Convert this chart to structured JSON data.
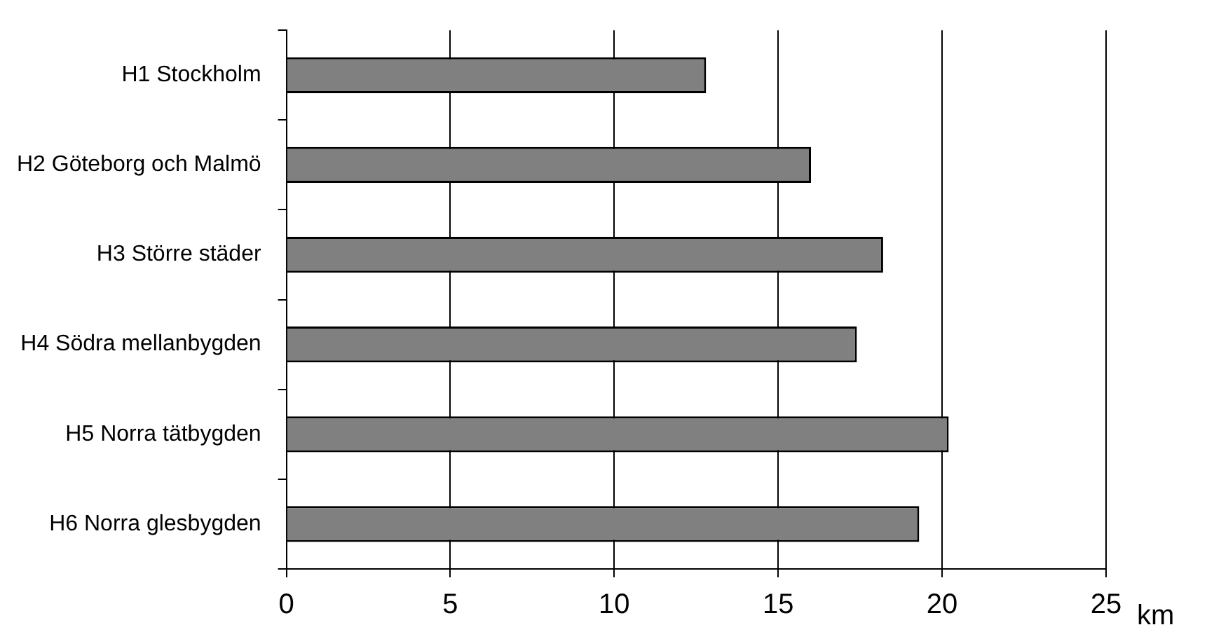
{
  "chart_data": {
    "type": "bar",
    "orientation": "horizontal",
    "xlabel": "km",
    "categories": [
      "H1 Stockholm",
      "H2 Göteborg och Malmö",
      "H3 Större städer",
      "H4 Södra mellanbygden",
      "H5 Norra tätbygden",
      "H6 Norra glesbygden"
    ],
    "values": [
      12.8,
      16.0,
      18.2,
      17.4,
      20.2,
      19.3
    ],
    "color": "#808080",
    "xlim": [
      0,
      25
    ],
    "xticks": [
      0,
      5,
      10,
      15,
      20,
      25
    ],
    "grid": "x",
    "legend": false
  }
}
